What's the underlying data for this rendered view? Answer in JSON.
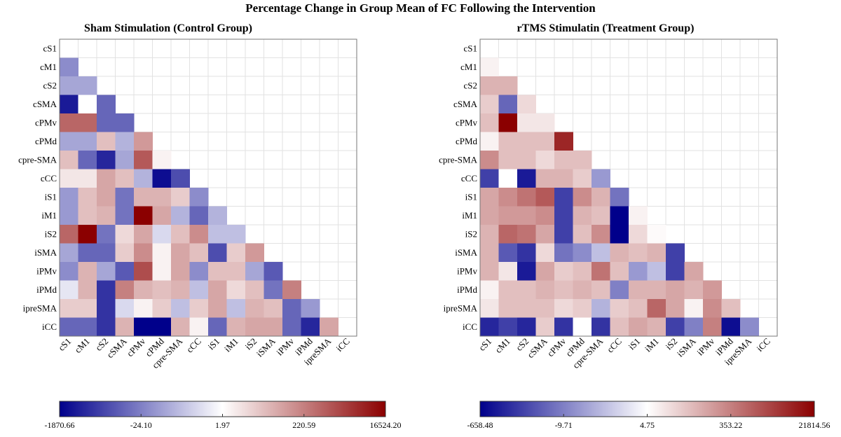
{
  "title": "Percentage Change in Group Mean of  FC Following the Intervention",
  "region_labels": [
    "cS1",
    "cM1",
    "cS2",
    "cSMA",
    "cPMv",
    "cPMd",
    "cpre-SMA",
    "cCC",
    "iS1",
    "iM1",
    "iS2",
    "iSMA",
    "iPMv",
    "iPMd",
    "ipreSMA",
    "iCC"
  ],
  "colormap": {
    "low": "#00008b",
    "mid": "#ffffff",
    "high": "#8b0000"
  },
  "chart_data": [
    {
      "type": "heatmap",
      "title": "Sham Stimulation (Control Group)",
      "colorbar_ticks": [
        "-1870.66",
        "-24.10",
        "1.97",
        "220.59",
        "16524.20"
      ],
      "level_scale": "each cell value is a signed intensity from -1 (dark blue) to 1 (dark red); 0 = white",
      "matrix": [
        [],
        [
          -0.45
        ],
        [
          -0.35,
          -0.35
        ],
        [
          -0.9,
          0.0,
          -0.6
        ],
        [
          0.6,
          0.6,
          -0.6,
          -0.6
        ],
        [
          -0.35,
          -0.35,
          0.25,
          -0.3,
          0.4
        ],
        [
          0.25,
          -0.6,
          -0.85,
          -0.35,
          0.65,
          0.05
        ],
        [
          0.1,
          0.1,
          0.35,
          0.25,
          -0.3,
          -0.95,
          -0.7
        ],
        [
          -0.4,
          0.25,
          0.35,
          -0.55,
          0.3,
          0.3,
          0.2,
          -0.45
        ],
        [
          -0.4,
          0.25,
          0.3,
          -0.55,
          1.0,
          0.35,
          -0.3,
          -0.6,
          -0.3
        ],
        [
          0.6,
          1.0,
          -0.55,
          0.15,
          0.35,
          -0.15,
          0.25,
          0.45,
          -0.25,
          -0.25
        ],
        [
          -0.35,
          -0.6,
          -0.6,
          0.2,
          0.45,
          0.05,
          0.35,
          0.25,
          -0.7,
          0.2,
          0.4
        ],
        [
          -0.45,
          0.3,
          -0.35,
          -0.65,
          0.7,
          0.05,
          0.35,
          -0.45,
          0.25,
          0.25,
          -0.35,
          -0.65
        ],
        [
          -0.1,
          0.3,
          -0.8,
          0.5,
          0.3,
          0.25,
          0.3,
          -0.25,
          0.35,
          0.15,
          0.25,
          -0.55,
          0.5
        ],
        [
          0.2,
          0.2,
          -0.8,
          -0.15,
          0.05,
          0.2,
          -0.25,
          0.2,
          0.35,
          -0.25,
          0.3,
          0.25,
          -0.6,
          -0.4
        ],
        [
          -0.6,
          -0.6,
          -0.8,
          0.3,
          -1.0,
          -1.0,
          0.3,
          0.05,
          -0.6,
          0.3,
          0.35,
          0.35,
          -0.6,
          -0.85,
          0.35
        ]
      ]
    },
    {
      "type": "heatmap",
      "title": "rTMS Stimulatin (Treatment Group)",
      "colorbar_ticks": [
        "-658.48",
        "-9.71",
        "4.75",
        "353.22",
        "21814.56"
      ],
      "level_scale": "each cell value is a signed intensity from -1 (dark blue) to 1 (dark red); 0 = white",
      "matrix": [
        [],
        [
          0.05
        ],
        [
          0.3,
          0.3
        ],
        [
          0.2,
          -0.6,
          0.15
        ],
        [
          0.25,
          1.0,
          0.1,
          0.1
        ],
        [
          0.05,
          0.25,
          0.25,
          0.25,
          0.85
        ],
        [
          0.45,
          0.25,
          0.25,
          0.15,
          0.25,
          0.25
        ],
        [
          -0.75,
          0.0,
          -0.9,
          0.3,
          0.3,
          0.2,
          -0.4
        ],
        [
          0.35,
          0.45,
          0.55,
          0.65,
          -0.75,
          0.45,
          0.3,
          -0.55
        ],
        [
          0.35,
          0.4,
          0.4,
          0.45,
          -0.75,
          0.3,
          0.25,
          -1.0,
          0.05
        ],
        [
          0.3,
          0.6,
          0.55,
          0.35,
          -0.75,
          0.25,
          0.45,
          -1.0,
          0.15,
          0.02
        ],
        [
          0.3,
          -0.65,
          -0.8,
          0.15,
          -0.55,
          -0.45,
          -0.25,
          0.3,
          0.25,
          0.3,
          -0.75
        ],
        [
          0.3,
          0.1,
          -0.9,
          0.35,
          0.2,
          0.25,
          0.55,
          0.25,
          -0.4,
          -0.25,
          -0.75,
          0.35
        ],
        [
          0.05,
          0.25,
          0.25,
          0.3,
          0.25,
          0.3,
          0.25,
          -0.5,
          0.3,
          0.3,
          0.35,
          0.3,
          0.4
        ],
        [
          0.1,
          0.25,
          0.25,
          0.25,
          0.15,
          0.2,
          -0.3,
          0.2,
          0.25,
          0.6,
          0.35,
          0.05,
          0.45,
          0.25
        ],
        [
          -0.85,
          -0.75,
          -0.85,
          0.2,
          -0.8,
          0.0,
          -0.8,
          0.25,
          0.35,
          0.3,
          -0.75,
          -0.5,
          0.5,
          -0.95,
          -0.45
        ]
      ]
    }
  ]
}
